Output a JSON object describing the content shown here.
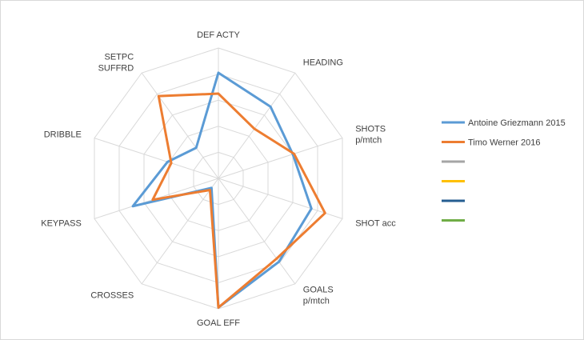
{
  "chart_data": {
    "type": "radar",
    "title": "",
    "axes": [
      {
        "label": [
          "DEF ACTY"
        ]
      },
      {
        "label": [
          "HEADING"
        ]
      },
      {
        "label": [
          "SHOTS",
          "p/mtch"
        ]
      },
      {
        "label": [
          "SHOT acc"
        ]
      },
      {
        "label": [
          "GOALS",
          "p/mtch"
        ]
      },
      {
        "label": [
          "GOAL EFF"
        ]
      },
      {
        "label": [
          "CROSSES"
        ]
      },
      {
        "label": [
          "KEYPASS"
        ]
      },
      {
        "label": [
          "DRIBBLE"
        ]
      },
      {
        "label": [
          "SETPC",
          "SUFFRD"
        ]
      }
    ],
    "rmax": 1.0,
    "grid_levels": 5,
    "series": [
      {
        "name": "Antoine Griezmann 2015",
        "color": "#5b9bd5",
        "values": [
          0.81,
          0.68,
          0.6,
          0.75,
          0.79,
          0.99,
          0.09,
          0.69,
          0.41,
          0.29
        ]
      },
      {
        "name": "Timo Werner 2016",
        "color": "#ed7d31",
        "values": [
          0.65,
          0.47,
          0.61,
          0.86,
          0.76,
          0.99,
          0.11,
          0.53,
          0.38,
          0.78
        ]
      }
    ],
    "legend_extra": [
      {
        "name": "",
        "color": "#a5a5a5"
      },
      {
        "name": "",
        "color": "#ffc000"
      },
      {
        "name": "",
        "color": "#255e91"
      },
      {
        "name": "",
        "color": "#70ad47"
      }
    ],
    "legend_position": "right"
  }
}
